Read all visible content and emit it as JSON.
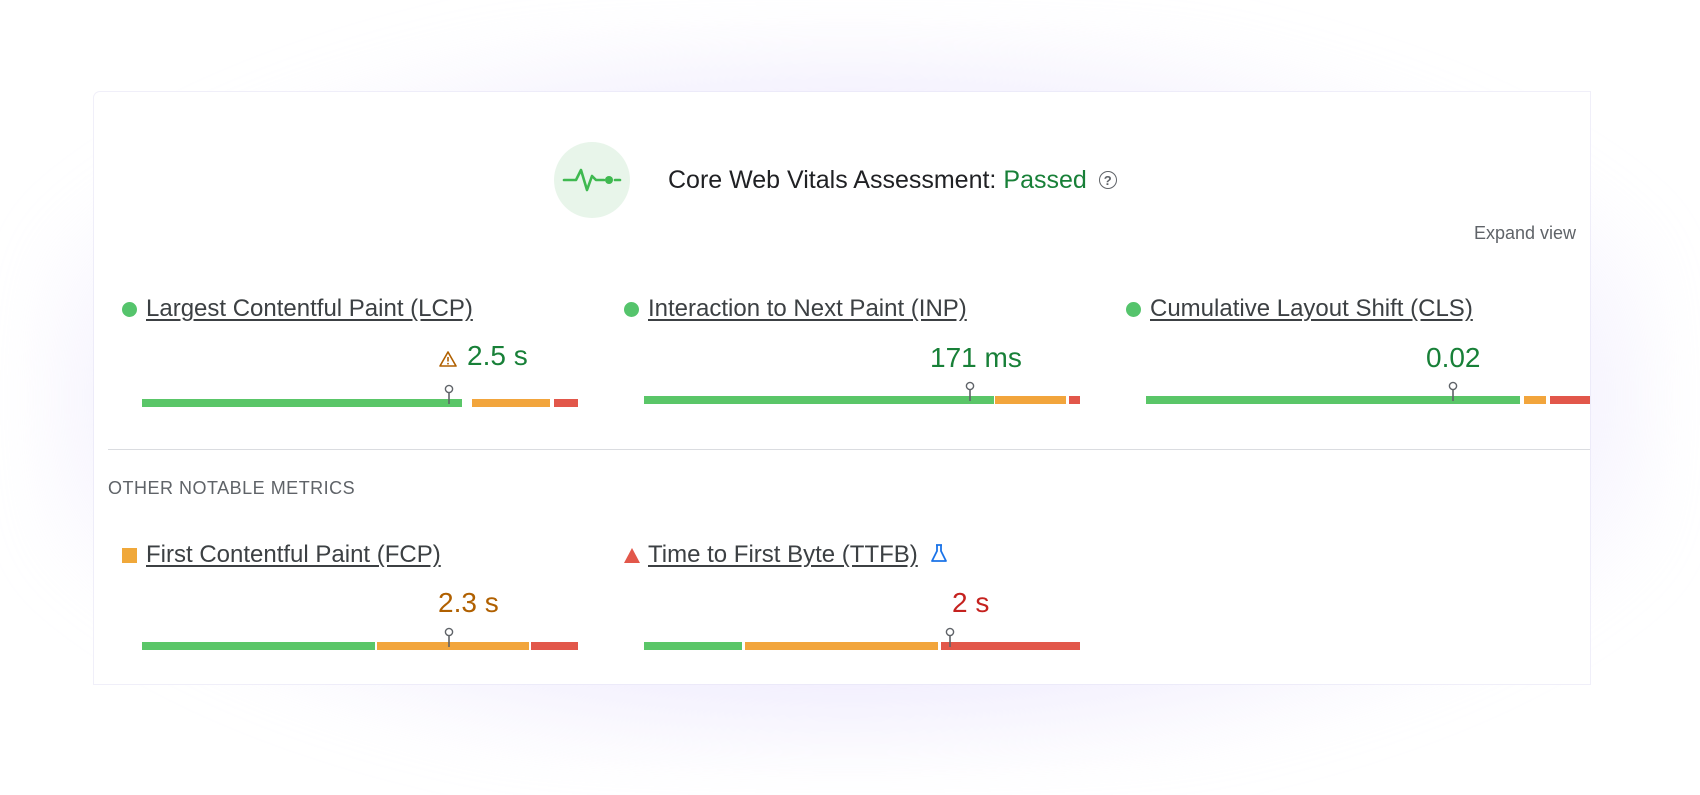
{
  "header": {
    "title": "Core Web Vitals Assessment:",
    "status": "Passed",
    "status_color": "#188038",
    "icon": "heartbeat-icon",
    "help_icon": "help-icon",
    "help_glyph": "?"
  },
  "expand_view_label": "Expand view",
  "core_metrics": [
    {
      "name": "Largest Contentful Paint (LCP)",
      "value": "2.5 s",
      "status": "good",
      "warning_icon": "warning-icon"
    },
    {
      "name": "Interaction to Next Paint (INP)",
      "value": "171 ms",
      "status": "good"
    },
    {
      "name": "Cumulative Layout Shift (CLS)",
      "value": "0.02",
      "status": "good"
    }
  ],
  "other_section_label": "OTHER NOTABLE METRICS",
  "other_metrics": [
    {
      "name": "First Contentful Paint (FCP)",
      "value": "2.3 s",
      "status": "needs-improvement"
    },
    {
      "name": "Time to First Byte (TTFB)",
      "value": "2 s",
      "status": "poor",
      "experimental_icon": "flask-icon"
    }
  ],
  "colors": {
    "good": "#5ac668",
    "needs_improvement": "#f2a53c",
    "poor": "#e2574a"
  }
}
